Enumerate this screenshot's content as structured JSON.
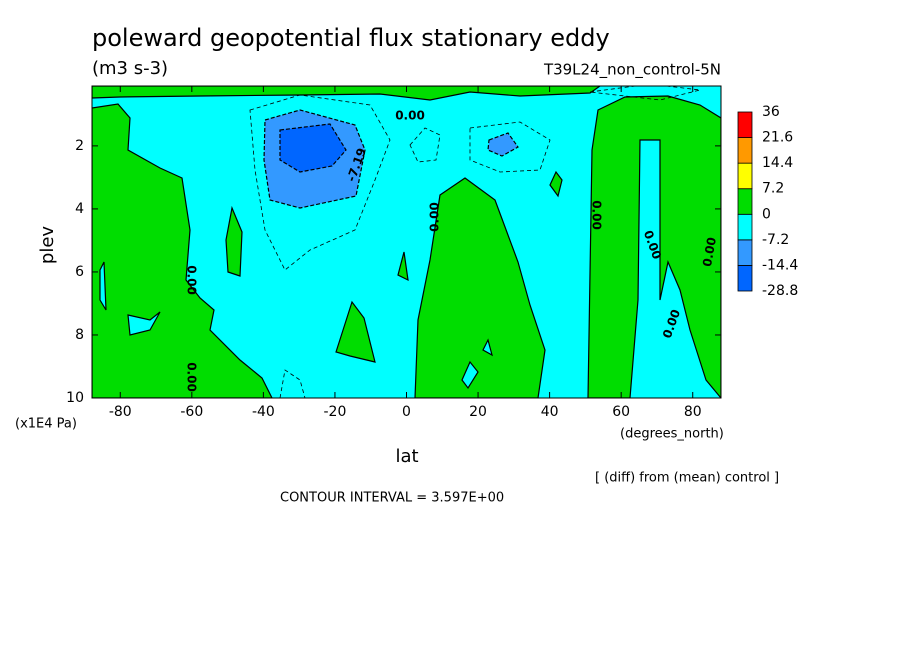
{
  "chart_data": {
    "type": "contour",
    "title": "poleward geopotential flux stationary eddy",
    "subtitle": "(m3 s-3)",
    "dataset": "T39L24_non_control-5N",
    "x_label": "lat",
    "x_units": "(degrees_north)",
    "y_label": "plev",
    "y_units": "(x1E4 Pa)",
    "xlim": [
      -87.9,
      87.9
    ],
    "xticks": [
      -80,
      -60,
      -40,
      -20,
      0,
      20,
      40,
      60,
      80
    ],
    "ylim": [
      10,
      0.1
    ],
    "yticks": [
      2,
      4,
      6,
      8,
      10
    ],
    "levels": [
      -28.8,
      -14.4,
      -7.2,
      0,
      7.2,
      14.4,
      21.6,
      36
    ],
    "level_colors": [
      "#0066ff",
      "#3399ff",
      "#00ffff",
      "#00dd00",
      "#ffff00",
      "#ff9900",
      "#ff0000"
    ],
    "contour_labels": [
      "0.00",
      "-7.19",
      "0.00",
      "0.00",
      "0.00",
      "0.00",
      "0.00",
      "0.00",
      "0.00"
    ],
    "note": "[ (diff) from (mean) control ]",
    "contour_interval": "CONTOUR INTERVAL = 3.597E+00"
  }
}
